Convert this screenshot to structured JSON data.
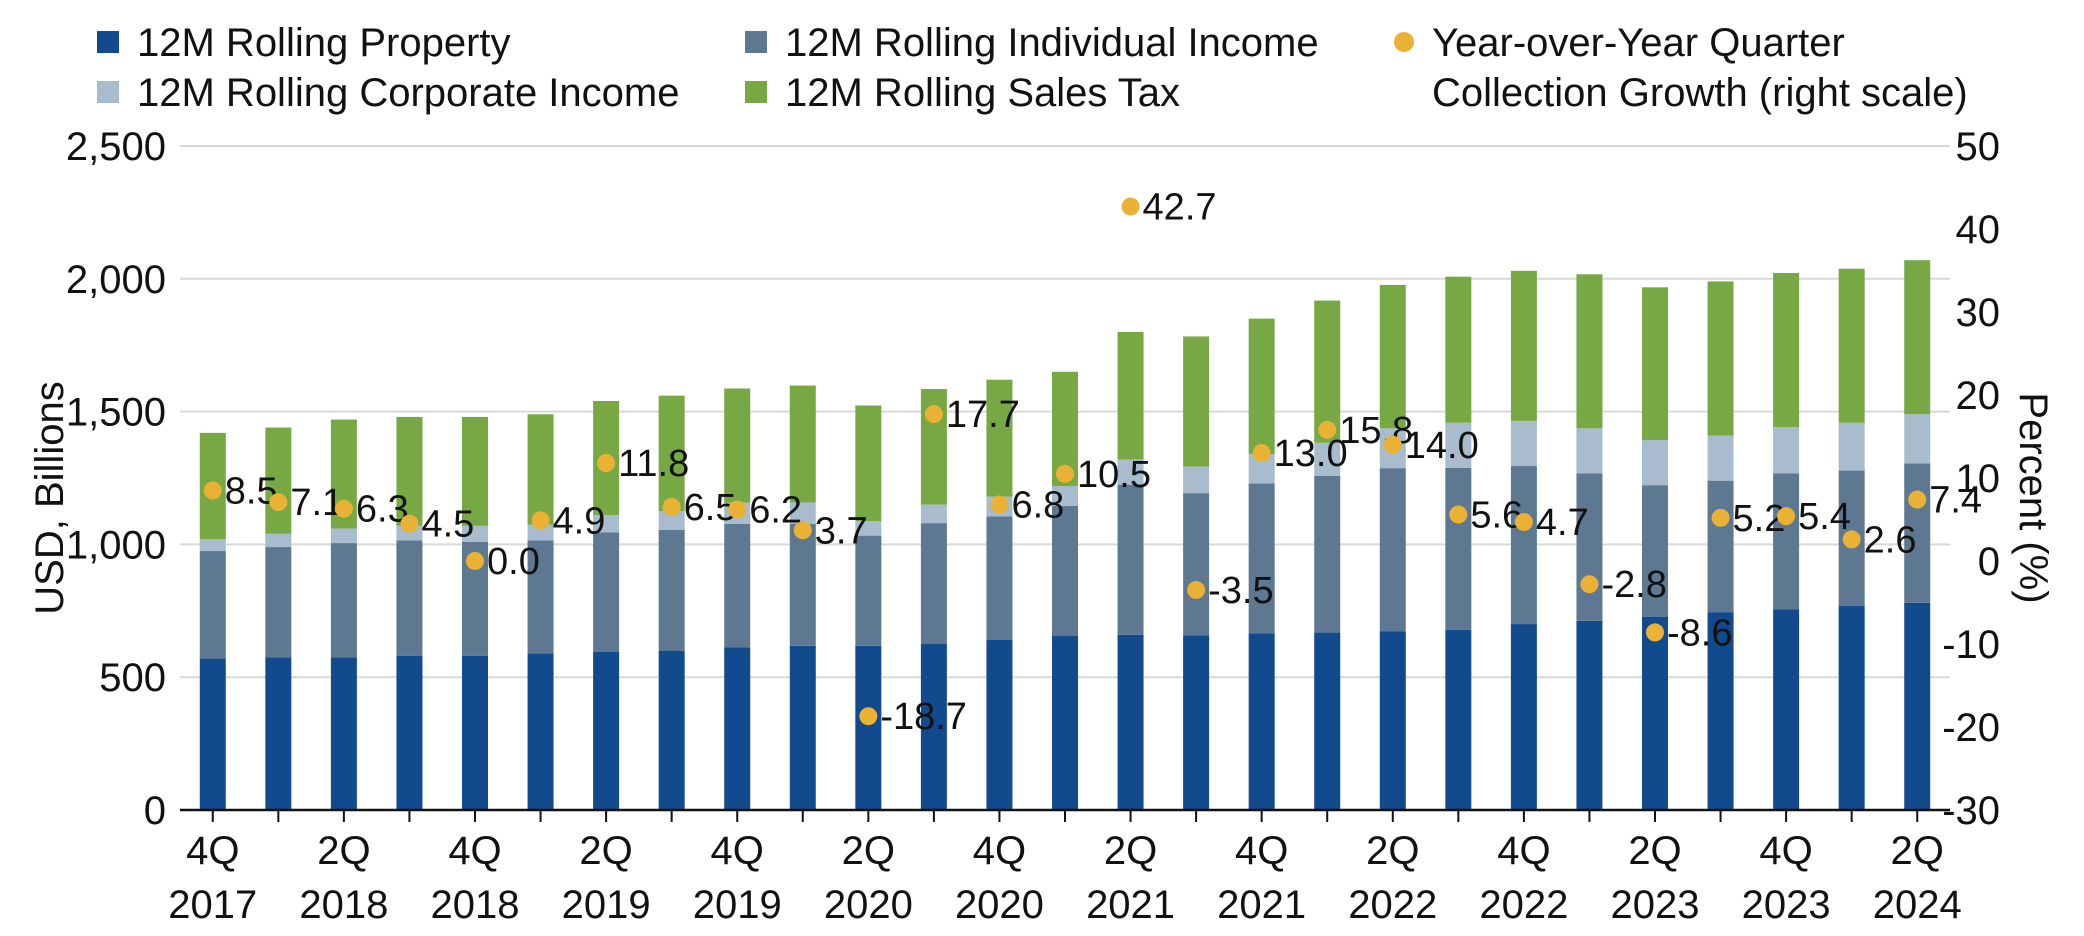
{
  "chart_data": {
    "type": "bar",
    "stacked": true,
    "title": "",
    "categories": [
      "4Q 2017",
      "1Q 2018",
      "2Q 2018",
      "3Q 2018",
      "4Q 2018",
      "1Q 2019",
      "2Q 2019",
      "3Q 2019",
      "4Q 2019",
      "1Q 2020",
      "2Q 2020",
      "3Q 2020",
      "4Q 2020",
      "1Q 2021",
      "2Q 2021",
      "3Q 2021",
      "4Q 2021",
      "1Q 2022",
      "2Q 2022",
      "3Q 2022",
      "4Q 2022",
      "1Q 2023",
      "2Q 2023",
      "3Q 2023",
      "4Q 2023",
      "1Q 2024",
      "2Q 2024"
    ],
    "x_tick_labels": [
      {
        "index": 0,
        "line1": "4Q",
        "line2": "2017"
      },
      {
        "index": 2,
        "line1": "2Q",
        "line2": "2018"
      },
      {
        "index": 4,
        "line1": "4Q",
        "line2": "2018"
      },
      {
        "index": 6,
        "line1": "2Q",
        "line2": "2019"
      },
      {
        "index": 8,
        "line1": "4Q",
        "line2": "2019"
      },
      {
        "index": 10,
        "line1": "2Q",
        "line2": "2020"
      },
      {
        "index": 12,
        "line1": "4Q",
        "line2": "2020"
      },
      {
        "index": 14,
        "line1": "2Q",
        "line2": "2021"
      },
      {
        "index": 16,
        "line1": "4Q",
        "line2": "2021"
      },
      {
        "index": 18,
        "line1": "2Q",
        "line2": "2022"
      },
      {
        "index": 20,
        "line1": "4Q",
        "line2": "2022"
      },
      {
        "index": 22,
        "line1": "2Q",
        "line2": "2023"
      },
      {
        "index": 24,
        "line1": "4Q",
        "line2": "2023"
      },
      {
        "index": 26,
        "line1": "2Q",
        "line2": "2024"
      }
    ],
    "series": [
      {
        "name": "12M Rolling Property",
        "color": "#124a8e",
        "values": [
          570,
          575,
          575,
          580,
          580,
          590,
          595,
          600,
          612,
          618,
          618,
          625,
          640,
          655,
          660,
          658,
          665,
          668,
          672,
          678,
          700,
          712,
          728,
          745,
          755,
          768,
          780
        ]
      },
      {
        "name": "12M Rolling Individual Income",
        "color": "#5e7892",
        "values": [
          405,
          415,
          430,
          435,
          430,
          425,
          450,
          455,
          465,
          460,
          415,
          455,
          465,
          490,
          565,
          535,
          565,
          590,
          615,
          610,
          595,
          555,
          495,
          495,
          512,
          510,
          525
        ]
      },
      {
        "name": "12M Rolling Corporate Income",
        "color": "#a9bccd",
        "values": [
          45,
          50,
          55,
          55,
          60,
          60,
          65,
          70,
          80,
          80,
          55,
          70,
          75,
          75,
          95,
          100,
          110,
          125,
          150,
          170,
          170,
          170,
          170,
          170,
          175,
          180,
          185
        ]
      },
      {
        "name": "12M Rolling Sales Tax",
        "color": "#77a843",
        "values": [
          400,
          400,
          410,
          410,
          410,
          415,
          430,
          435,
          430,
          440,
          435,
          435,
          440,
          430,
          480,
          490,
          510,
          535,
          540,
          550,
          565,
          580,
          575,
          580,
          580,
          580,
          580
        ]
      }
    ],
    "line_series": {
      "name": "Year-over-Year Quarter Collection Growth (right scale)",
      "legend_line1": "Year-over-Year Quarter",
      "legend_line2": "Collection Growth (right scale)",
      "color": "#e9b234",
      "axis": "right",
      "values": [
        8.5,
        7.1,
        6.3,
        4.5,
        0.0,
        4.9,
        11.8,
        6.5,
        6.2,
        3.7,
        -18.7,
        17.7,
        6.8,
        10.5,
        42.7,
        -3.5,
        13.0,
        15.8,
        14.0,
        5.6,
        4.7,
        -2.8,
        -8.6,
        5.2,
        5.4,
        2.6,
        7.4
      ],
      "labels": [
        "8.5",
        "7.1",
        "6.3",
        "4.5",
        "0.0",
        "4.9",
        "11.8",
        "6.5",
        "6.2",
        "3.7",
        "-18.7",
        "17.7",
        "6.8",
        "10.5",
        "42.7",
        "-3.5",
        "13.0",
        "15.8",
        "14.0",
        "5.6",
        "4.7",
        "-2.8",
        "-8.6",
        "5.2",
        "5.4",
        "2.6",
        "7.4"
      ]
    },
    "ylabel": "USD, Billions",
    "ylabel_right": "Percent (%)",
    "ylim": [
      0,
      2500
    ],
    "ylim_right": [
      -30,
      50
    ],
    "y_ticks": [
      0,
      500,
      1000,
      1500,
      2000,
      2500
    ],
    "y_tick_labels": [
      "0",
      "500",
      "1,000",
      "1,500",
      "2,000",
      "2,500"
    ],
    "y_ticks_right": [
      -30,
      -20,
      -10,
      0,
      10,
      20,
      30,
      40,
      50
    ],
    "y_tick_labels_right": [
      "-30",
      "-20",
      "-10",
      "0",
      "10",
      "20",
      "30",
      "40",
      "50"
    ],
    "grid": true,
    "legend_position": "top"
  }
}
